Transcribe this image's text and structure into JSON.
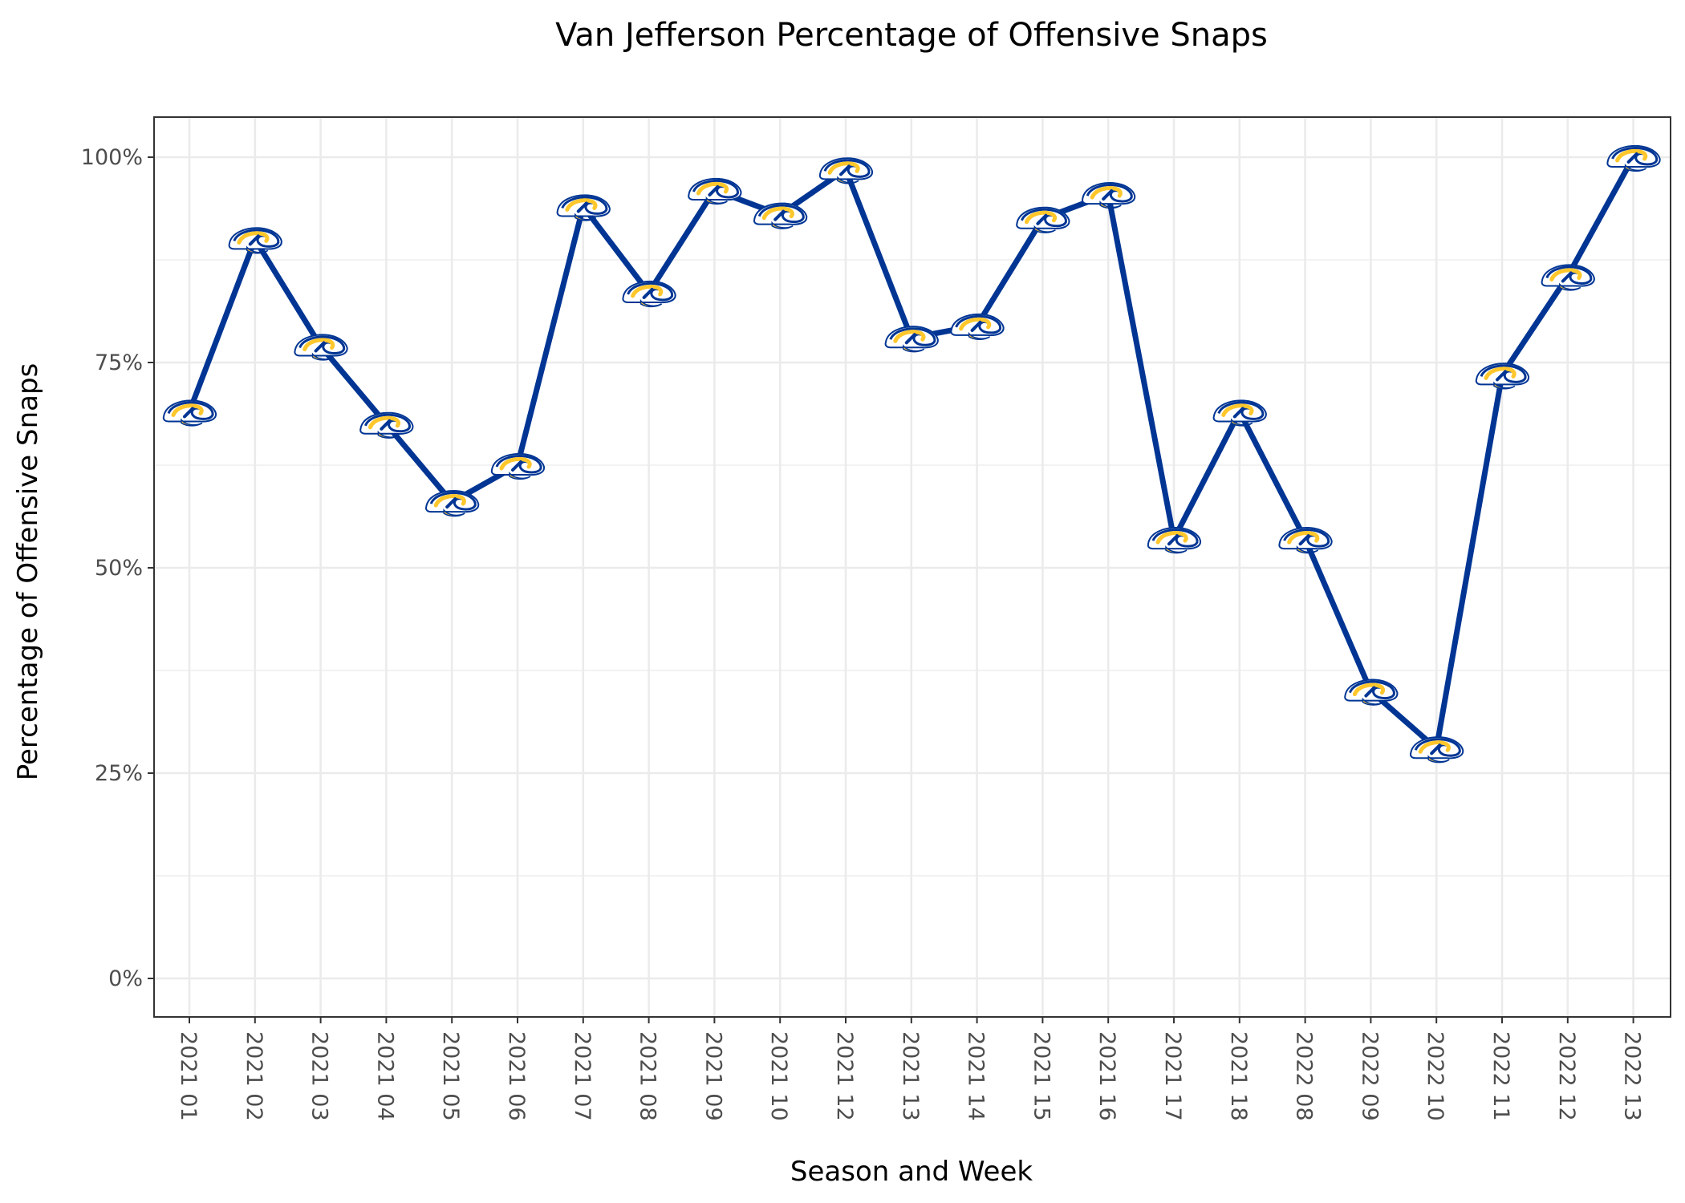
{
  "chart_data": {
    "type": "line",
    "title": "Van Jefferson Percentage of Offensive Snaps",
    "xlabel": "Season and Week",
    "ylabel": "Percentage of Offensive Snaps",
    "ylim": [
      0,
      1
    ],
    "y_ticks": [
      "0%",
      "25%",
      "50%",
      "75%",
      "100%"
    ],
    "grid": true,
    "legend": "none",
    "marker": "rams-logo-icon",
    "colors": {
      "line": "#003594",
      "logo_gold": "#FFC72C",
      "logo_navy": "#003594",
      "logo_white": "#FFFFFF"
    },
    "categories": [
      "2021 01",
      "2021 02",
      "2021 03",
      "2021 04",
      "2021 05",
      "2021 06",
      "2021 07",
      "2021 08",
      "2021 09",
      "2021 10",
      "2021 12",
      "2021 13",
      "2021 14",
      "2021 15",
      "2021 16",
      "2021 17",
      "2021 18",
      "2022 08",
      "2022 09",
      "2022 10",
      "2022 11",
      "2022 12",
      "2022 13"
    ],
    "series": [
      {
        "values": [
          0.69,
          0.9,
          0.77,
          0.675,
          0.58,
          0.625,
          0.94,
          0.835,
          0.96,
          0.93,
          0.985,
          0.78,
          0.795,
          0.925,
          0.955,
          0.535,
          0.69,
          0.535,
          0.35,
          0.28,
          0.735,
          0.855,
          1.0
        ]
      }
    ]
  }
}
